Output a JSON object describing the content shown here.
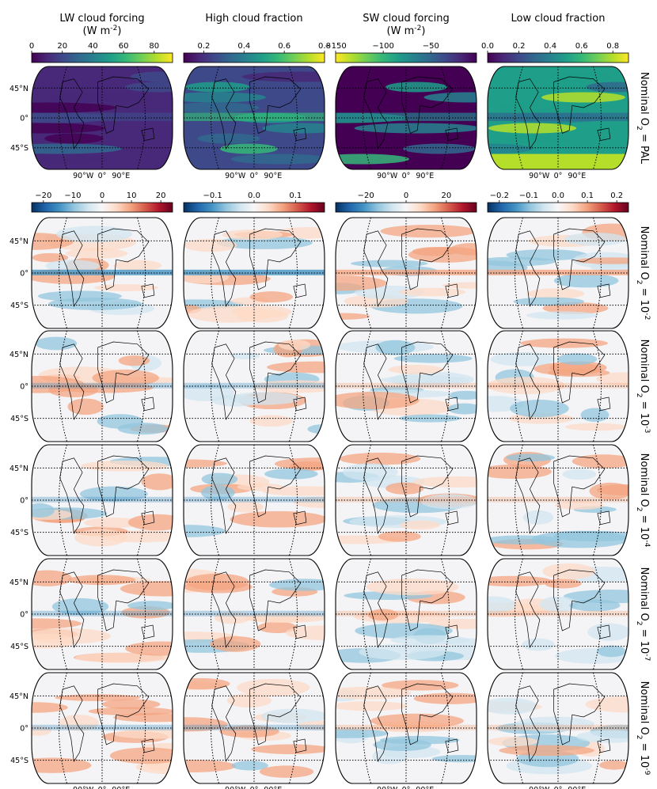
{
  "columns": [
    {
      "title": "LW cloud forcing",
      "unit": "(W m$^{-2}$)"
    },
    {
      "title": "High cloud fraction",
      "unit": ""
    },
    {
      "title": "SW cloud forcing",
      "unit": "(W m$^{-2}$)"
    },
    {
      "title": "Low cloud fraction",
      "unit": ""
    }
  ],
  "row_labels": [
    "Nominal O$_2$ = PAL",
    "Nominal O$_2$ = 10$^{-2}$",
    "Nominal O$_2$ = 10$^{-3}$",
    "Nominal O$_2$ = 10$^{-4}$",
    "Nominal O$_2$ = 10$^{-7}$",
    "Nominal O$_2$ = 10$^{-9}$"
  ],
  "lat_labels": [
    "45°N",
    "0°",
    "45°S"
  ],
  "lon_labels": [
    "90°W",
    "0°",
    "90°E"
  ],
  "colorbars": {
    "absolute": [
      {
        "ticks": [
          "0",
          "20",
          "40",
          "60",
          "80"
        ],
        "min": 0,
        "max": 92,
        "tick_values": [
          0,
          20,
          40,
          60,
          80
        ],
        "cmap": "viridis"
      },
      {
        "ticks": [
          "0.2",
          "0.4",
          "0.6",
          "0.8"
        ],
        "min": 0.1,
        "max": 0.8,
        "tick_values": [
          0.2,
          0.4,
          0.6,
          0.8
        ],
        "cmap": "viridis"
      },
      {
        "ticks": [
          "−150",
          "−100",
          "−50"
        ],
        "min": -150,
        "max": -2,
        "tick_values": [
          -150,
          -100,
          -50
        ],
        "cmap": "viridis_r"
      },
      {
        "ticks": [
          "0.0",
          "0.2",
          "0.4",
          "0.6",
          "0.8"
        ],
        "min": 0.0,
        "max": 0.9,
        "tick_values": [
          0.0,
          0.2,
          0.4,
          0.6,
          0.8
        ],
        "cmap": "viridis"
      }
    ],
    "difference": [
      {
        "ticks": [
          "−20",
          "−10",
          "0",
          "10",
          "20"
        ],
        "min": -24,
        "max": 24,
        "tick_values": [
          -20,
          -10,
          0,
          10,
          20
        ],
        "cmap": "RdBu_r"
      },
      {
        "ticks": [
          "−0.1",
          "0.0",
          "0.1"
        ],
        "min": -0.17,
        "max": 0.17,
        "tick_values": [
          -0.1,
          0.0,
          0.1
        ],
        "cmap": "RdBu_r"
      },
      {
        "ticks": [
          "−20",
          "0",
          "20"
        ],
        "min": -35,
        "max": 35,
        "tick_values": [
          -20,
          0,
          20
        ],
        "cmap": "RdBu_r"
      },
      {
        "ticks": [
          "−0.2",
          "−0.1",
          "0.0",
          "0.1",
          "0.2"
        ],
        "min": -0.24,
        "max": 0.24,
        "tick_values": [
          -0.2,
          -0.1,
          0.0,
          0.1,
          0.2
        ],
        "cmap": "RdBu_r"
      }
    ]
  },
  "colors": {
    "viridis": [
      "#440154",
      "#482878",
      "#3e4989",
      "#31688e",
      "#26828e",
      "#1f9e89",
      "#35b779",
      "#6ece58",
      "#b5de2b",
      "#fde725"
    ],
    "rdbu": [
      "#053061",
      "#2166ac",
      "#4393c3",
      "#92c5de",
      "#d1e5f0",
      "#f7f7f7",
      "#fddbc7",
      "#f4a582",
      "#d6604d",
      "#b2182b",
      "#67001f"
    ]
  }
}
